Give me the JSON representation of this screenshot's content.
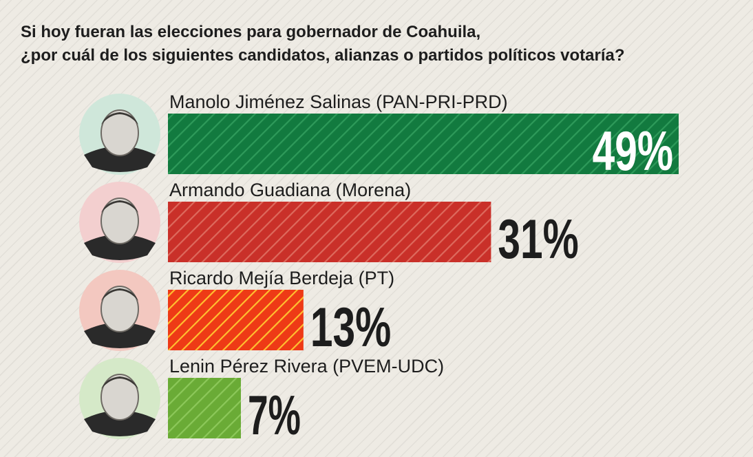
{
  "question": {
    "line1": "Si hoy fueran las elecciones para gobernador de Coahuila,",
    "line2": "¿por cuál de los siguientes candidatos, alianzas o partidos políticos votaría?"
  },
  "chart_data": {
    "type": "bar",
    "orientation": "horizontal",
    "categories": [
      "Manolo Jiménez Salinas (PAN-PRI-PRD)",
      "Armando Guadiana (Morena)",
      "Ricardo Mejía Berdeja (PT)",
      "Lenin Pérez Rivera (PVEM-UDC)"
    ],
    "values": [
      49,
      31,
      13,
      7
    ],
    "value_labels": [
      "49%",
      "31%",
      "13%",
      "7%"
    ],
    "bar_colors": [
      "#127a3f",
      "#c93029",
      "#ee3a16",
      "#6aab36"
    ],
    "stripe_colors": [
      "#2e9a5a",
      "#dd6a5d",
      "#ffc030",
      "#8cc85a"
    ],
    "avatar_tints": [
      "#cfe7da",
      "#f3cfcf",
      "#f3c8c0",
      "#d5e9c8"
    ],
    "first_label_inside_bar": true,
    "grid": false,
    "legend": "none"
  }
}
